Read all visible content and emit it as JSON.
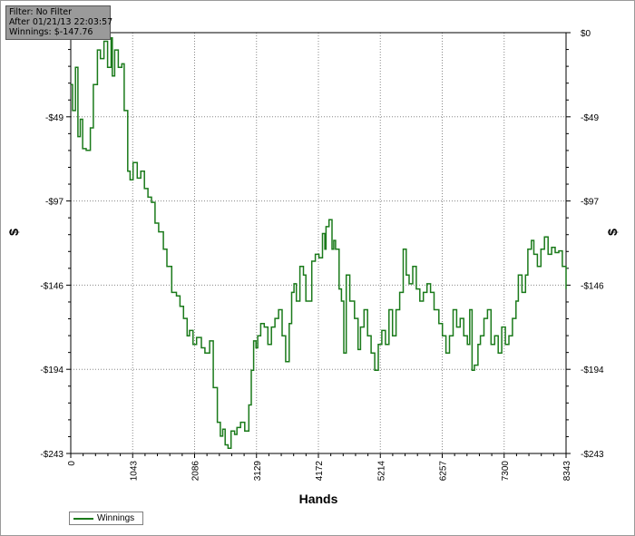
{
  "info": {
    "filter": "Filter: No Filter",
    "after": "After 01/21/13 22:03:57",
    "winnings": "Winnings: $-147.76"
  },
  "chart_data": {
    "type": "line",
    "xlabel": "Hands",
    "ylabel": "$",
    "xlim": [
      0,
      8343
    ],
    "ylim": [
      -243,
      0
    ],
    "x_ticks": [
      "0",
      "1043",
      "2086",
      "3129",
      "4172",
      "5214",
      "6257",
      "7300",
      "8343"
    ],
    "y_ticks": [
      "$0",
      "-$49",
      "-$97",
      "-$146",
      "-$194",
      "-$243"
    ],
    "grid": true,
    "legend": "bottom-left",
    "line_color": "#1a7a1a",
    "series": [
      {
        "name": "Winnings",
        "x": [
          0,
          30,
          80,
          120,
          160,
          200,
          260,
          330,
          380,
          450,
          500,
          560,
          620,
          680,
          700,
          740,
          800,
          860,
          900,
          960,
          1000,
          1050,
          1120,
          1180,
          1240,
          1300,
          1360,
          1420,
          1480,
          1560,
          1620,
          1700,
          1780,
          1840,
          1900,
          1960,
          2000,
          2060,
          2120,
          2200,
          2260,
          2340,
          2400,
          2470,
          2520,
          2560,
          2600,
          2650,
          2700,
          2760,
          2800,
          2860,
          2930,
          3000,
          3040,
          3080,
          3120,
          3150,
          3200,
          3260,
          3320,
          3380,
          3440,
          3500,
          3560,
          3620,
          3680,
          3720,
          3760,
          3800,
          3860,
          3920,
          3960,
          4000,
          4060,
          4120,
          4180,
          4240,
          4280,
          4300,
          4350,
          4400,
          4430,
          4460,
          4520,
          4560,
          4600,
          4640,
          4700,
          4780,
          4840,
          4880,
          4940,
          5000,
          5060,
          5120,
          5180,
          5240,
          5300,
          5360,
          5420,
          5480,
          5540,
          5600,
          5650,
          5700,
          5760,
          5820,
          5880,
          5940,
          6000,
          6060,
          6120,
          6200,
          6260,
          6320,
          6380,
          6440,
          6500,
          6560,
          6620,
          6680,
          6720,
          6760,
          6800,
          6860,
          6900,
          6960,
          7020,
          7080,
          7140,
          7200,
          7260,
          7320,
          7380,
          7440,
          7500,
          7540,
          7600,
          7660,
          7700,
          7760,
          7800,
          7860,
          7920,
          7980,
          8040,
          8100,
          8160,
          8220,
          8280,
          8343
        ],
        "values": [
          -30,
          -45,
          -20,
          -60,
          -50,
          -67,
          -68,
          -55,
          -30,
          -10,
          -15,
          -5,
          -20,
          -3,
          -25,
          -10,
          -20,
          -18,
          -45,
          -80,
          -85,
          -75,
          -84,
          -80,
          -90,
          -95,
          -98,
          -110,
          -115,
          -125,
          -135,
          -150,
          -152,
          -158,
          -165,
          -175,
          -172,
          -180,
          -176,
          -182,
          -185,
          -178,
          -205,
          -225,
          -233,
          -229,
          -238,
          -240,
          -230,
          -232,
          -228,
          -225,
          -230,
          -215,
          -195,
          -178,
          -182,
          -175,
          -168,
          -170,
          -180,
          -170,
          -165,
          -160,
          -175,
          -190,
          -168,
          -150,
          -145,
          -155,
          -135,
          -140,
          -155,
          -155,
          -132,
          -128,
          -130,
          -116,
          -125,
          -112,
          -108,
          -125,
          -120,
          -125,
          -148,
          -155,
          -185,
          -140,
          -155,
          -165,
          -183,
          -170,
          -160,
          -175,
          -185,
          -195,
          -180,
          -172,
          -180,
          -160,
          -175,
          -160,
          -150,
          -125,
          -140,
          -145,
          -135,
          -148,
          -155,
          -150,
          -145,
          -150,
          -160,
          -168,
          -175,
          -185,
          -175,
          -160,
          -170,
          -165,
          -175,
          -180,
          -160,
          -195,
          -192,
          -180,
          -175,
          -165,
          -160,
          -180,
          -175,
          -185,
          -170,
          -180,
          -175,
          -165,
          -155,
          -140,
          -150,
          -140,
          -125,
          -120,
          -128,
          -135,
          -125,
          -118,
          -128,
          -124,
          -127,
          -126,
          -135,
          -148
        ]
      }
    ]
  },
  "legend": {
    "label": "Winnings"
  }
}
